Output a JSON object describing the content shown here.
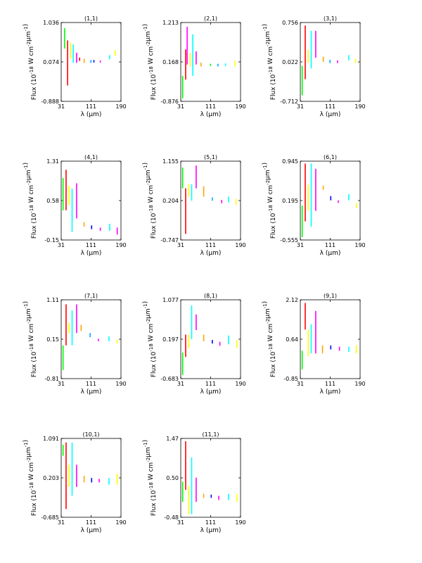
{
  "chart_data": [
    {
      "type": "line",
      "title": "(1,1)",
      "ylabel": "Flux (10$^{-18}$ W cm$^{-2}$μm$^{-1}$)",
      "xlabel": "λ (μm)",
      "xlim": [
        31,
        190
      ],
      "ylim": [
        -0.888,
        1.036
      ],
      "yticks": [
        "1.036",
        "0.074",
        "-0.888"
      ],
      "xticks": [
        "31",
        "111",
        "190"
      ],
      "segments": [
        {
          "color": "#00ff00",
          "x": 40,
          "ymin": 0.4,
          "ymax": 0.9
        },
        {
          "color": "#ff0000",
          "x": 48,
          "ymin": -0.5,
          "ymax": 0.6
        },
        {
          "color": "#ffff00",
          "x": 56,
          "ymin": 0.15,
          "ymax": 0.55
        },
        {
          "color": "#00ffff",
          "x": 63,
          "ymin": 0.05,
          "ymax": 0.5
        },
        {
          "color": "#ff00ff",
          "x": 72,
          "ymin": 0.05,
          "ymax": 0.3
        },
        {
          "color": "#ff0000",
          "x": 80,
          "ymin": 0.1,
          "ymax": 0.18
        },
        {
          "color": "#ffa500",
          "x": 92,
          "ymin": 0.05,
          "ymax": 0.15
        },
        {
          "color": "#00aaff",
          "x": 110,
          "ymin": 0.05,
          "ymax": 0.12
        },
        {
          "color": "#0000ff",
          "x": 118,
          "ymin": 0.06,
          "ymax": 0.12
        },
        {
          "color": "#ff00ff",
          "x": 135,
          "ymin": 0.06,
          "ymax": 0.11
        },
        {
          "color": "#00ffff",
          "x": 160,
          "ymin": 0.14,
          "ymax": 0.24
        },
        {
          "color": "#ffff00",
          "x": 175,
          "ymin": 0.22,
          "ymax": 0.36
        }
      ]
    },
    {
      "type": "line",
      "title": "(2,1)",
      "ylabel": "Flux (10$^{-18}$ W cm$^{-2}$μm$^{-1}$)",
      "xlabel": "λ (μm)",
      "xlim": [
        31,
        190
      ],
      "ylim": [
        -0.876,
        1.213
      ],
      "yticks": [
        "1.213",
        "0.168",
        "-0.876"
      ],
      "xticks": [
        "31",
        "111",
        "190"
      ],
      "segments": [
        {
          "color": "#00ff00",
          "x": 36,
          "ymin": -0.8,
          "ymax": -0.2
        },
        {
          "color": "#ff0000",
          "x": 44,
          "ymin": -0.3,
          "ymax": 0.5
        },
        {
          "color": "#ff00ff",
          "x": 48,
          "ymin": 0.1,
          "ymax": 1.1
        },
        {
          "color": "#ffff00",
          "x": 56,
          "ymin": 0.05,
          "ymax": 0.4
        },
        {
          "color": "#00ffff",
          "x": 63,
          "ymin": -0.2,
          "ymax": 0.9
        },
        {
          "color": "#ff00ff",
          "x": 72,
          "ymin": 0.1,
          "ymax": 0.45
        },
        {
          "color": "#ffa500",
          "x": 85,
          "ymin": 0.05,
          "ymax": 0.15
        },
        {
          "color": "#00ff00",
          "x": 110,
          "ymin": 0.06,
          "ymax": 0.12
        },
        {
          "color": "#00aaff",
          "x": 130,
          "ymin": 0.05,
          "ymax": 0.12
        },
        {
          "color": "#00ffff",
          "x": 150,
          "ymin": 0.06,
          "ymax": 0.13
        },
        {
          "color": "#ffff00",
          "x": 175,
          "ymin": 0.05,
          "ymax": 0.2
        }
      ]
    },
    {
      "type": "line",
      "title": "(3,1)",
      "ylabel": "Flux (10$^{-18}$ W cm$^{-2}$μm$^{-1}$)",
      "xlabel": "λ (μm)",
      "xlim": [
        31,
        190
      ],
      "ylim": [
        -0.712,
        0.756
      ],
      "yticks": [
        "0.756",
        "0.022",
        "-0.712"
      ],
      "xticks": [
        "31",
        "111",
        "190"
      ],
      "segments": [
        {
          "color": "#00ff00",
          "x": 36,
          "ymin": -0.6,
          "ymax": -0.05
        },
        {
          "color": "#ff0000",
          "x": 44,
          "ymin": -0.3,
          "ymax": 0.7
        },
        {
          "color": "#ffff00",
          "x": 52,
          "ymin": 0.0,
          "ymax": 0.25
        },
        {
          "color": "#00ffff",
          "x": 60,
          "ymin": -0.1,
          "ymax": 0.6
        },
        {
          "color": "#ff00ff",
          "x": 72,
          "ymin": 0.1,
          "ymax": 0.6
        },
        {
          "color": "#ffa500",
          "x": 92,
          "ymin": 0.02,
          "ymax": 0.12
        },
        {
          "color": "#00aaff",
          "x": 110,
          "ymin": 0.0,
          "ymax": 0.06
        },
        {
          "color": "#ff00ff",
          "x": 130,
          "ymin": 0.0,
          "ymax": 0.05
        },
        {
          "color": "#00ffff",
          "x": 160,
          "ymin": 0.05,
          "ymax": 0.15
        },
        {
          "color": "#ffff00",
          "x": 178,
          "ymin": 0.0,
          "ymax": 0.08
        }
      ]
    },
    {
      "type": "line",
      "title": "(4,1)",
      "ylabel": "Flux (10$^{-18}$ W cm$^{-2}$μm$^{-1}$)",
      "xlabel": "λ (μm)",
      "xlim": [
        31,
        190
      ],
      "ylim": [
        -0.15,
        1.31
      ],
      "yticks": [
        "1.31",
        "0.58",
        "-0.15"
      ],
      "xticks": [
        "31",
        "111",
        "190"
      ],
      "segments": [
        {
          "color": "#00ff00",
          "x": 36,
          "ymin": 0.4,
          "ymax": 1.0
        },
        {
          "color": "#ff0000",
          "x": 44,
          "ymin": 0.4,
          "ymax": 1.15
        },
        {
          "color": "#ffff00",
          "x": 52,
          "ymin": 0.5,
          "ymax": 0.85
        },
        {
          "color": "#00ffff",
          "x": 60,
          "ymin": 0.0,
          "ymax": 0.8
        },
        {
          "color": "#ff00ff",
          "x": 72,
          "ymin": 0.25,
          "ymax": 0.9
        },
        {
          "color": "#ffa500",
          "x": 92,
          "ymin": 0.1,
          "ymax": 0.18
        },
        {
          "color": "#0000ff",
          "x": 112,
          "ymin": 0.05,
          "ymax": 0.12
        },
        {
          "color": "#ff00ff",
          "x": 135,
          "ymin": 0.02,
          "ymax": 0.08
        },
        {
          "color": "#00ffff",
          "x": 160,
          "ymin": 0.02,
          "ymax": 0.15
        },
        {
          "color": "#ff00ff",
          "x": 180,
          "ymin": -0.05,
          "ymax": 0.08
        }
      ]
    },
    {
      "type": "line",
      "title": "(5,1)",
      "ylabel": "Flux (10$^{-18}$ W cm$^{-2}$μm$^{-1}$)",
      "xlabel": "λ (μm)",
      "xlim": [
        31,
        190
      ],
      "ylim": [
        -0.747,
        1.155
      ],
      "yticks": [
        "1.155",
        "0.204",
        "-0.747"
      ],
      "xticks": [
        "31",
        "111",
        "190"
      ],
      "segments": [
        {
          "color": "#00ff00",
          "x": 36,
          "ymin": 0.5,
          "ymax": 1.0
        },
        {
          "color": "#ff0000",
          "x": 44,
          "ymin": -0.6,
          "ymax": 0.5
        },
        {
          "color": "#ffff00",
          "x": 52,
          "ymin": 0.3,
          "ymax": 0.6
        },
        {
          "color": "#00ffff",
          "x": 60,
          "ymin": 0.2,
          "ymax": 0.6
        },
        {
          "color": "#ff00ff",
          "x": 72,
          "ymin": 0.5,
          "ymax": 1.05
        },
        {
          "color": "#ffa500",
          "x": 92,
          "ymin": 0.3,
          "ymax": 0.55
        },
        {
          "color": "#00aaff",
          "x": 115,
          "ymin": 0.2,
          "ymax": 0.28
        },
        {
          "color": "#ff00ff",
          "x": 140,
          "ymin": 0.14,
          "ymax": 0.22
        },
        {
          "color": "#00ffff",
          "x": 158,
          "ymin": 0.16,
          "ymax": 0.3
        },
        {
          "color": "#ffff00",
          "x": 178,
          "ymin": 0.1,
          "ymax": 0.25
        }
      ]
    },
    {
      "type": "line",
      "title": "(6,1)",
      "ylabel": "Flux (10$^{-18}$ W cm$^{-2}$μm$^{-1}$)",
      "xlabel": "λ (μm)",
      "xlim": [
        31,
        190
      ],
      "ylim": [
        -0.555,
        0.945
      ],
      "yticks": [
        "0.945",
        "0.195",
        "-0.555"
      ],
      "xticks": [
        "31",
        "111",
        "190"
      ],
      "segments": [
        {
          "color": "#00ff00",
          "x": 36,
          "ymin": -0.5,
          "ymax": 0.1
        },
        {
          "color": "#ff0000",
          "x": 44,
          "ymin": -0.2,
          "ymax": 0.9
        },
        {
          "color": "#ffff00",
          "x": 52,
          "ymin": 0.0,
          "ymax": 0.5
        },
        {
          "color": "#00ffff",
          "x": 60,
          "ymin": -0.3,
          "ymax": 0.9
        },
        {
          "color": "#ff00ff",
          "x": 72,
          "ymin": 0.0,
          "ymax": 0.8
        },
        {
          "color": "#ffa500",
          "x": 92,
          "ymin": 0.4,
          "ymax": 0.48
        },
        {
          "color": "#0000ff",
          "x": 112,
          "ymin": 0.2,
          "ymax": 0.28
        },
        {
          "color": "#ff00ff",
          "x": 132,
          "ymin": 0.15,
          "ymax": 0.2
        },
        {
          "color": "#00ffff",
          "x": 160,
          "ymin": 0.2,
          "ymax": 0.32
        },
        {
          "color": "#ffff00",
          "x": 180,
          "ymin": 0.05,
          "ymax": 0.15
        }
      ]
    },
    {
      "type": "line",
      "title": "(7,1)",
      "ylabel": "Flux (10$^{-18}$ W cm$^{-2}$μm$^{-1}$)",
      "xlabel": "λ (μm)",
      "xlim": [
        31,
        190
      ],
      "ylim": [
        -0.81,
        1.11
      ],
      "yticks": [
        "1.11",
        "0.15",
        "-0.81"
      ],
      "xticks": [
        "31",
        "111",
        "190"
      ],
      "segments": [
        {
          "color": "#00ff00",
          "x": 36,
          "ymin": -0.6,
          "ymax": 0.0
        },
        {
          "color": "#ff0000",
          "x": 44,
          "ymin": 0.0,
          "ymax": 1.0
        },
        {
          "color": "#ffff00",
          "x": 52,
          "ymin": 0.3,
          "ymax": 0.55
        },
        {
          "color": "#00ffff",
          "x": 60,
          "ymin": 0.0,
          "ymax": 0.85
        },
        {
          "color": "#ff00ff",
          "x": 72,
          "ymin": 0.3,
          "ymax": 1.0
        },
        {
          "color": "#ffa500",
          "x": 84,
          "ymin": 0.35,
          "ymax": 0.5
        },
        {
          "color": "#00aaff",
          "x": 108,
          "ymin": 0.2,
          "ymax": 0.3
        },
        {
          "color": "#ff00ff",
          "x": 130,
          "ymin": 0.1,
          "ymax": 0.16
        },
        {
          "color": "#00ffff",
          "x": 158,
          "ymin": 0.1,
          "ymax": 0.22
        },
        {
          "color": "#ffff00",
          "x": 180,
          "ymin": 0.05,
          "ymax": 0.14
        }
      ]
    },
    {
      "type": "line",
      "title": "(8,1)",
      "ylabel": "Flux (10$^{-18}$ W cm$^{-2}$μm$^{-1}$)",
      "xlabel": "λ (μm)",
      "xlim": [
        31,
        190
      ],
      "ylim": [
        -0.683,
        1.077
      ],
      "yticks": [
        "1.077",
        "0.197",
        "-0.683"
      ],
      "xticks": [
        "31",
        "111",
        "190"
      ],
      "segments": [
        {
          "color": "#00ff00",
          "x": 36,
          "ymin": -0.6,
          "ymax": -0.1
        },
        {
          "color": "#ff0000",
          "x": 44,
          "ymin": -0.2,
          "ymax": 0.3
        },
        {
          "color": "#ffff00",
          "x": 52,
          "ymin": 0.0,
          "ymax": 0.3
        },
        {
          "color": "#00ffff",
          "x": 60,
          "ymin": 0.2,
          "ymax": 0.95
        },
        {
          "color": "#ff00ff",
          "x": 72,
          "ymin": 0.4,
          "ymax": 0.75
        },
        {
          "color": "#ffa500",
          "x": 92,
          "ymin": 0.15,
          "ymax": 0.3
        },
        {
          "color": "#0000ff",
          "x": 115,
          "ymin": 0.1,
          "ymax": 0.18
        },
        {
          "color": "#ff00ff",
          "x": 135,
          "ymin": 0.05,
          "ymax": 0.14
        },
        {
          "color": "#00ffff",
          "x": 158,
          "ymin": 0.08,
          "ymax": 0.28
        },
        {
          "color": "#ffff00",
          "x": 180,
          "ymin": 0.0,
          "ymax": 0.18
        }
      ]
    },
    {
      "type": "line",
      "title": "(9,1)",
      "ylabel": "Flux (10$^{-18}$ W cm$^{-2}$μm$^{-1}$)",
      "xlabel": "λ (μm)",
      "xlim": [
        31,
        190
      ],
      "ylim": [
        -0.85,
        2.12
      ],
      "yticks": [
        "2.12",
        "0.64",
        "-0.85"
      ],
      "xticks": [
        "31",
        "111",
        "190"
      ],
      "segments": [
        {
          "color": "#00ff00",
          "x": 36,
          "ymin": -0.5,
          "ymax": 0.2
        },
        {
          "color": "#ff0000",
          "x": 44,
          "ymin": 1.0,
          "ymax": 2.0
        },
        {
          "color": "#ffff00",
          "x": 52,
          "ymin": 0.0,
          "ymax": 1.0
        },
        {
          "color": "#00ffff",
          "x": 60,
          "ymin": 0.1,
          "ymax": 1.2
        },
        {
          "color": "#ff00ff",
          "x": 72,
          "ymin": 0.1,
          "ymax": 1.7
        },
        {
          "color": "#ffa500",
          "x": 90,
          "ymin": 0.1,
          "ymax": 0.4
        },
        {
          "color": "#0000ff",
          "x": 112,
          "ymin": 0.25,
          "ymax": 0.4
        },
        {
          "color": "#ff00ff",
          "x": 135,
          "ymin": 0.2,
          "ymax": 0.35
        },
        {
          "color": "#00ffff",
          "x": 160,
          "ymin": 0.15,
          "ymax": 0.35
        },
        {
          "color": "#ffff00",
          "x": 180,
          "ymin": 0.1,
          "ymax": 0.4
        }
      ]
    },
    {
      "type": "line",
      "title": "(10,1)",
      "ylabel": "Flux (10$^{-18}$ W cm$^{-2}$μm$^{-1}$)",
      "xlabel": "λ (μm)",
      "xlim": [
        31,
        190
      ],
      "ylim": [
        -0.685,
        1.091
      ],
      "yticks": [
        "1.091",
        "0.203",
        "-0.685"
      ],
      "xticks": [
        "31",
        "111",
        "190"
      ],
      "segments": [
        {
          "color": "#00ff00",
          "x": 36,
          "ymin": 0.7,
          "ymax": 0.95
        },
        {
          "color": "#ff0000",
          "x": 44,
          "ymin": -0.5,
          "ymax": 1.0
        },
        {
          "color": "#ffff00",
          "x": 52,
          "ymin": 0.0,
          "ymax": 0.5
        },
        {
          "color": "#00ffff",
          "x": 60,
          "ymin": -0.2,
          "ymax": 1.0
        },
        {
          "color": "#ff00ff",
          "x": 72,
          "ymin": 0.0,
          "ymax": 0.5
        },
        {
          "color": "#ffa500",
          "x": 92,
          "ymin": 0.1,
          "ymax": 0.25
        },
        {
          "color": "#0000ff",
          "x": 112,
          "ymin": 0.1,
          "ymax": 0.2
        },
        {
          "color": "#ff00ff",
          "x": 132,
          "ymin": 0.1,
          "ymax": 0.18
        },
        {
          "color": "#00ffff",
          "x": 158,
          "ymin": 0.05,
          "ymax": 0.2
        },
        {
          "color": "#ffff00",
          "x": 180,
          "ymin": 0.05,
          "ymax": 0.3
        }
      ]
    },
    {
      "type": "line",
      "title": "(11,1)",
      "ylabel": "Flux (10$^{-18}$ W cm$^{-2}$μm$^{-1}$)",
      "xlabel": "λ (μm)",
      "xlim": [
        31,
        190
      ],
      "ylim": [
        -0.48,
        1.47
      ],
      "yticks": [
        "1.47",
        "0.50",
        "-0.48"
      ],
      "xticks": [
        "31",
        "111",
        "190"
      ],
      "segments": [
        {
          "color": "#00ff00",
          "x": 36,
          "ymin": -0.1,
          "ymax": 0.4
        },
        {
          "color": "#ff0000",
          "x": 44,
          "ymin": 0.2,
          "ymax": 1.4
        },
        {
          "color": "#ffff00",
          "x": 52,
          "ymin": -0.4,
          "ymax": 0.3
        },
        {
          "color": "#00ffff",
          "x": 60,
          "ymin": -0.4,
          "ymax": 1.0
        },
        {
          "color": "#ff00ff",
          "x": 72,
          "ymin": -0.1,
          "ymax": 0.5
        },
        {
          "color": "#ffa500",
          "x": 92,
          "ymin": 0.0,
          "ymax": 0.1
        },
        {
          "color": "#0000ff",
          "x": 112,
          "ymin": 0.0,
          "ymax": 0.08
        },
        {
          "color": "#ff00ff",
          "x": 132,
          "ymin": -0.05,
          "ymax": 0.05
        },
        {
          "color": "#00ffff",
          "x": 158,
          "ymin": -0.05,
          "ymax": 0.1
        },
        {
          "color": "#ffff00",
          "x": 180,
          "ymin": -0.1,
          "ymax": 0.1
        }
      ]
    }
  ]
}
